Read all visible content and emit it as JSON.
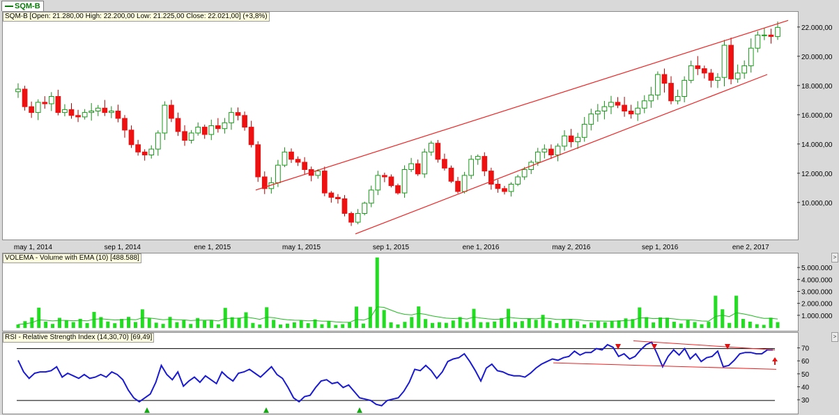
{
  "tab": {
    "label": "SQM-B"
  },
  "price_panel": {
    "title": "SQM-B [Open: 21.280,00  High: 22.200,00  Low: 21.225,00  Close: 22.021,00] (+3,8%)"
  },
  "volume_panel": {
    "title": "VOLEMA - Volume with EMA (10) [488.588]"
  },
  "rsi_panel": {
    "title": "RSI - Relative Strength Index (14,30,70) [69,49]"
  },
  "colors": {
    "up": "#22cc22",
    "down": "#ee1111",
    "trend": "#ee2222",
    "rsi": "#1a1ad0",
    "volume": "#22dd22",
    "ema": "#22bb22"
  },
  "chart_data": [
    {
      "type": "candlestick",
      "x_ticks": [
        "may 1, 2014",
        "sep 1, 2014",
        "ene 1, 2015",
        "may 1, 2015",
        "sep 1, 2015",
        "ene 1, 2016",
        "may 2, 2016",
        "sep 1, 2016",
        "ene 2, 2017"
      ],
      "y_ticks": [
        "10.000,00",
        "12.000,00",
        "14.000,00",
        "16.000,00",
        "18.000,00",
        "20.000,00",
        "22.000,00"
      ],
      "y_tick_values": [
        10000,
        12000,
        14000,
        16000,
        18000,
        20000,
        22000
      ],
      "ylim": [
        7800,
        22800
      ],
      "xlim": [
        "2014-04-15",
        "2017-02-28"
      ],
      "closes": [
        17800,
        16600,
        16200,
        16900,
        16800,
        17300,
        16200,
        16400,
        16000,
        15900,
        16200,
        16300,
        16500,
        16200,
        16300,
        15800,
        15000,
        14000,
        13500,
        13300,
        13700,
        14800,
        16700,
        15800,
        14900,
        14300,
        14800,
        15200,
        14700,
        15300,
        15100,
        15500,
        16200,
        16000,
        15200,
        14000,
        11800,
        11000,
        11400,
        12600,
        13500,
        13000,
        12800,
        12300,
        11900,
        12200,
        10700,
        10400,
        10300,
        9300,
        8700,
        9300,
        10000,
        10900,
        11900,
        11800,
        11200,
        10700,
        12300,
        12700,
        12000,
        13500,
        14100,
        13000,
        12400,
        11500,
        10800,
        11900,
        13000,
        13200,
        12200,
        11300,
        11000,
        10800,
        11300,
        11800,
        12300,
        12800,
        13500,
        13700,
        13300,
        13900,
        14600,
        14200,
        14500,
        15400,
        16100,
        16300,
        16600,
        16900,
        16700,
        16300,
        16100,
        16500,
        17000,
        17400,
        18800,
        18200,
        17000,
        17300,
        18400,
        19400,
        19200,
        18900,
        18400,
        18600,
        20800,
        18500,
        18900,
        19400,
        20600,
        21500,
        21500,
        21400,
        22021
      ],
      "volume": {
        "ylim": [
          0,
          6000000
        ],
        "y_ticks": [
          "1.000.000",
          "2.000.000",
          "3.000.000",
          "4.000.000",
          "5.000.000"
        ],
        "y_tick_values": [
          1000000,
          2000000,
          3000000,
          4000000,
          5000000
        ],
        "last_value": 488588
      },
      "annotations": "trend channel lines"
    },
    {
      "type": "line",
      "name": "RSI",
      "ylim": [
        22,
        80
      ],
      "y_ticks": [
        "30",
        "40",
        "50",
        "60",
        "70"
      ],
      "y_tick_values": [
        30,
        40,
        50,
        60,
        70
      ],
      "levels": [
        30,
        70
      ],
      "values": [
        61,
        52,
        47,
        51,
        52,
        52,
        53,
        56,
        48,
        51,
        49,
        47,
        50,
        47,
        48,
        50,
        48,
        52,
        50,
        46,
        38,
        32,
        29,
        32,
        35,
        44,
        57,
        50,
        46,
        52,
        41,
        45,
        48,
        44,
        49,
        46,
        43,
        52,
        48,
        45,
        51,
        52,
        54,
        51,
        48,
        52,
        56,
        50,
        47,
        40,
        32,
        29,
        33,
        34,
        40,
        45,
        46,
        43,
        44,
        40,
        42,
        37,
        32,
        31,
        30,
        27,
        26,
        30,
        31,
        32,
        37,
        44,
        54,
        53,
        57,
        53,
        47,
        52,
        60,
        62,
        63,
        66,
        60,
        53,
        45,
        55,
        58,
        53,
        52,
        50,
        49,
        49,
        48,
        51,
        55,
        58,
        60,
        62,
        61,
        63,
        64,
        68,
        65,
        67,
        67,
        70,
        69,
        73,
        71,
        64,
        66,
        62,
        64,
        69,
        73,
        75,
        66,
        56,
        64,
        69,
        65,
        70,
        62,
        66,
        60,
        63,
        64,
        68,
        56,
        57,
        61,
        66,
        67,
        67,
        66,
        66,
        69,
        69
      ]
    }
  ]
}
